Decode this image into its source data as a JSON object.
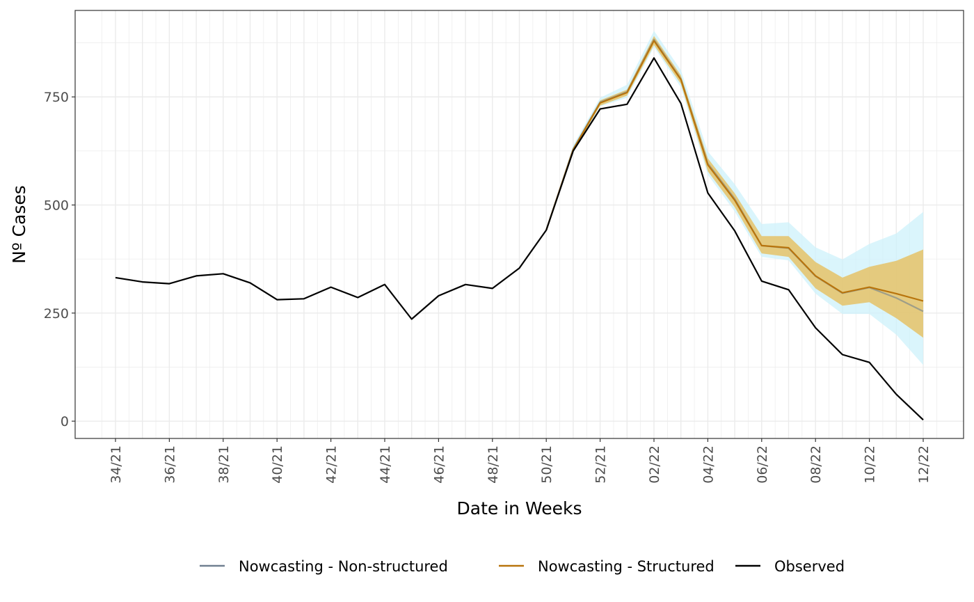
{
  "chart_data": {
    "type": "line",
    "title": "",
    "xlabel": "Date in Weeks",
    "ylabel": "Nº Cases",
    "ylim": [
      -40,
      950
    ],
    "yticks": [
      0,
      250,
      500,
      750
    ],
    "x_tick_labels": [
      "34/21",
      "36/21",
      "38/21",
      "40/21",
      "42/21",
      "44/21",
      "46/21",
      "48/21",
      "50/21",
      "52/21",
      "02/22",
      "04/22",
      "06/22",
      "08/22",
      "10/22",
      "12/22"
    ],
    "x_tick_every": 2,
    "x_weeks": [
      "34/21",
      "35/21",
      "36/21",
      "37/21",
      "38/21",
      "39/21",
      "40/21",
      "41/21",
      "42/21",
      "43/21",
      "44/21",
      "45/21",
      "46/21",
      "47/21",
      "48/21",
      "49/21",
      "50/21",
      "51/21",
      "52/21",
      "01/22",
      "02/22",
      "03/22",
      "04/22",
      "05/22",
      "06/22",
      "07/22",
      "08/22",
      "09/22",
      "10/22",
      "11/22",
      "12/22"
    ],
    "grid": true,
    "legend_position": "bottom",
    "colors": {
      "observed": "#000000",
      "structured": "#b8740c",
      "structured_band": "#e8b848",
      "nonstructured": "#708090",
      "nonstructured_band": "#cdf2fb",
      "grid": "#ebebeb",
      "panel_border": "#333333"
    },
    "series": [
      {
        "name": "Observed",
        "key": "observed",
        "start_index": 0,
        "values": [
          332,
          322,
          318,
          336,
          341,
          320,
          281,
          283,
          310,
          286,
          316,
          236,
          290,
          316,
          307,
          354,
          442,
          625,
          722,
          733,
          840,
          735,
          528,
          440,
          324,
          304,
          216,
          154,
          136,
          62,
          3
        ]
      },
      {
        "name": "Nowcasting - Non-structured",
        "key": "nonstructured",
        "start_index": 16,
        "values": [
          442,
          630,
          738,
          762,
          883,
          792,
          596,
          514,
          406,
          400,
          335,
          296,
          309,
          285,
          254
        ],
        "lower": [
          442,
          622,
          728,
          748,
          865,
          772,
          570,
          485,
          380,
          372,
          295,
          248,
          248,
          200,
          130
        ],
        "upper": [
          442,
          638,
          748,
          778,
          903,
          812,
          624,
          548,
          456,
          460,
          402,
          374,
          410,
          434,
          484
        ]
      },
      {
        "name": "Nowcasting - Structured",
        "key": "structured",
        "start_index": 16,
        "values": [
          442,
          628,
          736,
          760,
          880,
          790,
          593,
          511,
          406,
          401,
          336,
          297,
          310,
          295,
          278
        ],
        "lower": [
          442,
          624,
          730,
          753,
          870,
          780,
          578,
          495,
          388,
          380,
          307,
          267,
          275,
          238,
          193
        ],
        "upper": [
          442,
          632,
          742,
          767,
          891,
          800,
          608,
          527,
          428,
          428,
          368,
          332,
          357,
          371,
          397
        ]
      }
    ],
    "legend": [
      {
        "label": "Nowcasting - Non-structured",
        "key": "nonstructured"
      },
      {
        "label": "Nowcasting - Structured",
        "key": "structured"
      },
      {
        "label": "Observed",
        "key": "observed"
      }
    ]
  }
}
